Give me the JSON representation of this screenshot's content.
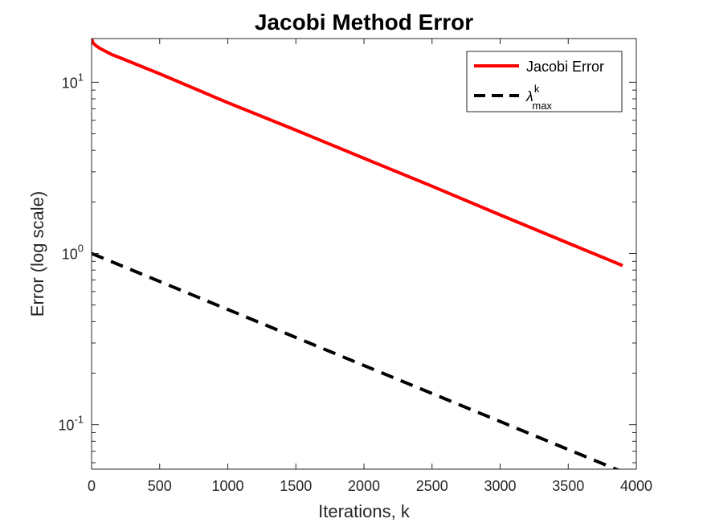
{
  "chart_data": {
    "type": "line",
    "title": "Jacobi Method Error",
    "xlabel": "Iterations, k",
    "ylabel": "Error (log scale)",
    "xlim": [
      0,
      4000
    ],
    "ylim": [
      0.055,
      18
    ],
    "yscale": "log",
    "grid": false,
    "legend_position": "top-right",
    "x_ticks": [
      0,
      500,
      1000,
      1500,
      2000,
      2500,
      3000,
      3500,
      4000
    ],
    "x_tick_labels": [
      "0",
      "500",
      "1000",
      "1500",
      "2000",
      "2500",
      "3000",
      "3500",
      "4000"
    ],
    "y_ticks": [
      {
        "value": 10,
        "base": "10",
        "exponent": "1"
      },
      {
        "value": 1,
        "base": "10",
        "exponent": "0"
      },
      {
        "value": 0.1,
        "base": "10",
        "exponent": "-1"
      }
    ],
    "series": [
      {
        "name": "Jacobi Error",
        "color": "#ff0000",
        "style": "solid",
        "x": [
          0,
          10,
          30,
          60,
          100,
          150,
          200,
          300,
          500,
          1000,
          1500,
          2000,
          2500,
          3000,
          3500,
          3900
        ],
        "y": [
          18,
          17,
          16.4,
          15.8,
          15.2,
          14.5,
          14.0,
          13.0,
          11.2,
          7.6,
          5.25,
          3.6,
          2.47,
          1.68,
          1.15,
          0.85
        ]
      },
      {
        "name_base": "λ",
        "name_sup": "k",
        "name_sub": "max",
        "color": "#000000",
        "style": "dashed",
        "x": [
          0,
          3900
        ],
        "y": [
          1.0,
          0.053
        ]
      }
    ]
  }
}
